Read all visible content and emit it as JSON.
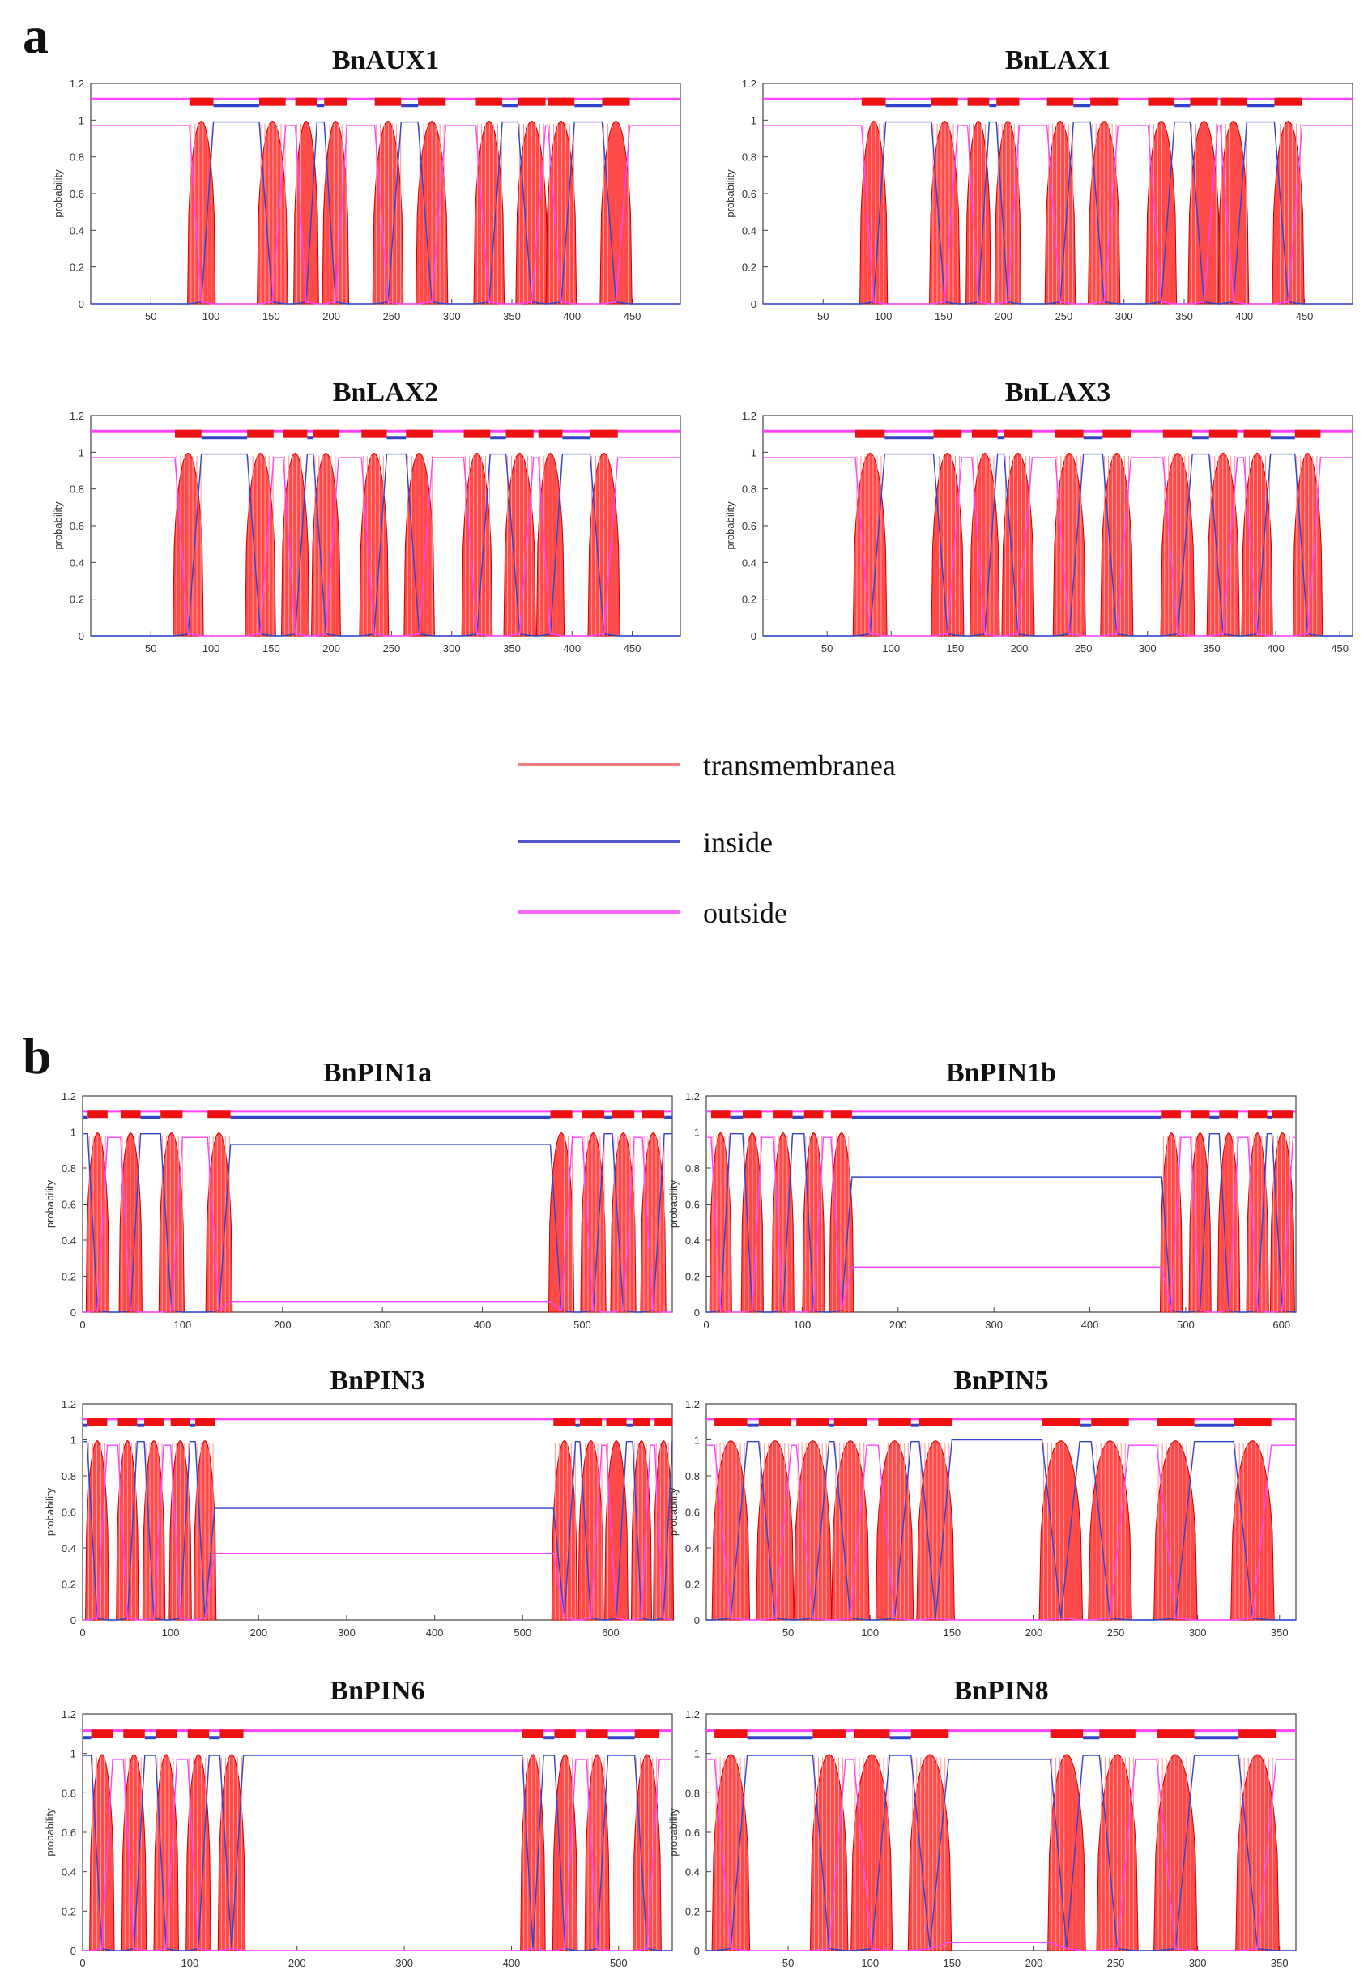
{
  "figure": {
    "panels": [
      {
        "letter": "a",
        "charts": [
          "BnAUX1",
          "BnLAX1",
          "BnLAX2",
          "BnLAX3"
        ]
      },
      {
        "letter": "b",
        "charts": [
          "BnPIN1a",
          "BnPIN1b",
          "BnPIN3",
          "BnPIN5",
          "BnPIN6",
          "BnPIN8"
        ]
      }
    ],
    "legend": [
      {
        "label": "transmembranea",
        "color": "#f08080"
      },
      {
        "label": "inside",
        "color": "#5555cc"
      },
      {
        "label": "outside",
        "color": "#ff66ff"
      }
    ]
  },
  "chart_data": [
    {
      "type": "line",
      "title": "BnAUX1",
      "ylabel": "probability",
      "xlim": [
        0,
        490
      ],
      "ylim": [
        0,
        1.2
      ],
      "yticks": [
        "0",
        "0.2",
        "0.4",
        "0.6",
        "0.8",
        "1",
        "1.2"
      ],
      "xticks": [
        "50",
        "100",
        "150",
        "200",
        "250",
        "300",
        "350",
        "400",
        "450"
      ],
      "series": [
        {
          "name": "transmembrane",
          "color": "#ff0000"
        },
        {
          "name": "inside",
          "color": "#3344cc"
        },
        {
          "name": "outside",
          "color": "#ff44ff"
        }
      ],
      "tm_segments": [
        [
          82,
          102
        ],
        [
          140,
          162
        ],
        [
          170,
          188
        ],
        [
          194,
          213
        ],
        [
          236,
          258
        ],
        [
          272,
          295
        ],
        [
          320,
          342
        ],
        [
          355,
          378
        ],
        [
          380,
          402
        ],
        [
          425,
          448
        ]
      ],
      "start": "outside"
    },
    {
      "type": "line",
      "title": "BnLAX1",
      "ylabel": "probability",
      "xlim": [
        0,
        490
      ],
      "ylim": [
        0,
        1.2
      ],
      "yticks": [
        "0",
        "0.2",
        "0.4",
        "0.6",
        "0.8",
        "1",
        "1.2"
      ],
      "xticks": [
        "50",
        "100",
        "150",
        "200",
        "250",
        "300",
        "350",
        "400",
        "450"
      ],
      "series": [
        {
          "name": "transmembrane",
          "color": "#ff0000"
        },
        {
          "name": "inside",
          "color": "#3344cc"
        },
        {
          "name": "outside",
          "color": "#ff44ff"
        }
      ],
      "tm_segments": [
        [
          82,
          102
        ],
        [
          140,
          162
        ],
        [
          170,
          188
        ],
        [
          194,
          213
        ],
        [
          236,
          258
        ],
        [
          272,
          295
        ],
        [
          320,
          342
        ],
        [
          355,
          378
        ],
        [
          380,
          402
        ],
        [
          425,
          448
        ]
      ],
      "start": "outside"
    },
    {
      "type": "line",
      "title": "BnLAX2",
      "ylabel": "probability",
      "xlim": [
        0,
        490
      ],
      "ylim": [
        0,
        1.2
      ],
      "yticks": [
        "0",
        "0.2",
        "0.4",
        "0.6",
        "0.8",
        "1",
        "1.2"
      ],
      "xticks": [
        "50",
        "100",
        "150",
        "200",
        "250",
        "300",
        "350",
        "400",
        "450"
      ],
      "series": [
        {
          "name": "transmembrane",
          "color": "#ff0000"
        },
        {
          "name": "inside",
          "color": "#3344cc"
        },
        {
          "name": "outside",
          "color": "#ff44ff"
        }
      ],
      "tm_segments": [
        [
          70,
          92
        ],
        [
          130,
          152
        ],
        [
          160,
          180
        ],
        [
          185,
          206
        ],
        [
          225,
          246
        ],
        [
          262,
          284
        ],
        [
          310,
          332
        ],
        [
          345,
          368
        ],
        [
          372,
          392
        ],
        [
          415,
          438
        ]
      ],
      "start": "outside"
    },
    {
      "type": "line",
      "title": "BnLAX3",
      "ylabel": "probability",
      "xlim": [
        0,
        460
      ],
      "ylim": [
        0,
        1.2
      ],
      "yticks": [
        "0",
        "0.2",
        "0.4",
        "0.6",
        "0.8",
        "1",
        "1.2"
      ],
      "xticks": [
        "50",
        "100",
        "150",
        "200",
        "250",
        "300",
        "350",
        "400",
        "450"
      ],
      "series": [
        {
          "name": "transmembrane",
          "color": "#ff0000"
        },
        {
          "name": "inside",
          "color": "#3344cc"
        },
        {
          "name": "outside",
          "color": "#ff44ff"
        }
      ],
      "tm_segments": [
        [
          72,
          95
        ],
        [
          133,
          155
        ],
        [
          163,
          183
        ],
        [
          188,
          210
        ],
        [
          228,
          250
        ],
        [
          265,
          287
        ],
        [
          312,
          335
        ],
        [
          348,
          370
        ],
        [
          375,
          396
        ],
        [
          415,
          435
        ]
      ],
      "start": "outside"
    },
    {
      "type": "line",
      "title": "BnPIN1a",
      "ylabel": "probability",
      "xlim": [
        0,
        590
      ],
      "ylim": [
        0,
        1.2
      ],
      "yticks": [
        "0",
        "0.2",
        "0.4",
        "0.6",
        "0.8",
        "1",
        "1.2"
      ],
      "xticks": [
        "0",
        "100",
        "200",
        "300",
        "400",
        "500"
      ],
      "series": [
        {
          "name": "transmembrane",
          "color": "#ff0000"
        },
        {
          "name": "inside",
          "color": "#3344cc"
        },
        {
          "name": "outside",
          "color": "#ff44ff"
        }
      ],
      "tm_segments": [
        [
          5,
          25
        ],
        [
          38,
          58
        ],
        [
          78,
          100
        ],
        [
          125,
          148
        ],
        [
          468,
          490
        ],
        [
          500,
          522
        ],
        [
          530,
          552
        ],
        [
          560,
          582
        ]
      ],
      "loop": [
        150,
        465
      ],
      "loop_in": 0.93,
      "loop_out": 0.06,
      "start": "inside"
    },
    {
      "type": "line",
      "title": "BnPIN1b",
      "ylabel": "probability",
      "xlim": [
        0,
        615
      ],
      "ylim": [
        0,
        1.2
      ],
      "yticks": [
        "0",
        "0.2",
        "0.4",
        "0.6",
        "0.8",
        "1",
        "1.2"
      ],
      "xticks": [
        "0",
        "100",
        "200",
        "300",
        "400",
        "500",
        "600"
      ],
      "series": [
        {
          "name": "transmembrane",
          "color": "#ff0000"
        },
        {
          "name": "inside",
          "color": "#3344cc"
        },
        {
          "name": "outside",
          "color": "#ff44ff"
        }
      ],
      "tm_segments": [
        [
          5,
          25
        ],
        [
          38,
          58
        ],
        [
          70,
          90
        ],
        [
          102,
          122
        ],
        [
          130,
          152
        ],
        [
          475,
          495
        ],
        [
          505,
          525
        ],
        [
          535,
          555
        ],
        [
          565,
          585
        ],
        [
          590,
          612
        ]
      ],
      "loop": [
        155,
        470
      ],
      "loop_in": 0.75,
      "loop_out": 0.25,
      "start": "outside"
    },
    {
      "type": "line",
      "title": "BnPIN3",
      "ylabel": "probability",
      "xlim": [
        0,
        670
      ],
      "ylim": [
        0,
        1.2
      ],
      "yticks": [
        "0",
        "0.2",
        "0.4",
        "0.6",
        "0.8",
        "1",
        "1.2"
      ],
      "xticks": [
        "0",
        "100",
        "200",
        "300",
        "400",
        "500",
        "600"
      ],
      "series": [
        {
          "name": "transmembrane",
          "color": "#ff0000"
        },
        {
          "name": "inside",
          "color": "#3344cc"
        },
        {
          "name": "outside",
          "color": "#ff44ff"
        }
      ],
      "tm_segments": [
        [
          5,
          28
        ],
        [
          40,
          62
        ],
        [
          70,
          92
        ],
        [
          100,
          122
        ],
        [
          128,
          150
        ],
        [
          535,
          560
        ],
        [
          565,
          590
        ],
        [
          595,
          618
        ],
        [
          625,
          645
        ],
        [
          650,
          670
        ]
      ],
      "loop": [
        152,
        530
      ],
      "loop_in": 0.62,
      "loop_out": 0.37,
      "start": "inside"
    },
    {
      "type": "line",
      "title": "BnPIN5",
      "ylabel": "probability",
      "xlim": [
        0,
        360
      ],
      "ylim": [
        0,
        1.2
      ],
      "yticks": [
        "0",
        "0.2",
        "0.4",
        "0.6",
        "0.8",
        "1",
        "1.2"
      ],
      "xticks": [
        "50",
        "100",
        "150",
        "200",
        "250",
        "300",
        "350"
      ],
      "series": [
        {
          "name": "transmembrane",
          "color": "#ff0000"
        },
        {
          "name": "inside",
          "color": "#3344cc"
        },
        {
          "name": "outside",
          "color": "#ff44ff"
        }
      ],
      "tm_segments": [
        [
          5,
          25
        ],
        [
          32,
          52
        ],
        [
          55,
          75
        ],
        [
          78,
          98
        ],
        [
          105,
          125
        ],
        [
          130,
          150
        ],
        [
          205,
          228
        ],
        [
          235,
          258
        ],
        [
          275,
          298
        ],
        [
          322,
          345
        ]
      ],
      "loop": [
        150,
        200
      ],
      "loop_in": 1.0,
      "loop_out": 0.0,
      "start": "outside"
    },
    {
      "type": "line",
      "title": "BnPIN6",
      "ylabel": "probability",
      "xlim": [
        0,
        550
      ],
      "ylim": [
        0,
        1.2
      ],
      "yticks": [
        "0",
        "0.2",
        "0.4",
        "0.6",
        "0.8",
        "1",
        "1.2"
      ],
      "xticks": [
        "0",
        "100",
        "200",
        "300",
        "400",
        "500"
      ],
      "series": [
        {
          "name": "transmembrane",
          "color": "#ff0000"
        },
        {
          "name": "inside",
          "color": "#3344cc"
        },
        {
          "name": "outside",
          "color": "#ff44ff"
        }
      ],
      "tm_segments": [
        [
          8,
          28
        ],
        [
          38,
          58
        ],
        [
          68,
          88
        ],
        [
          98,
          118
        ],
        [
          128,
          150
        ],
        [
          410,
          430
        ],
        [
          440,
          460
        ],
        [
          470,
          490
        ],
        [
          515,
          538
        ]
      ],
      "loop": [
        152,
        405
      ],
      "loop_in": 0.99,
      "loop_out": 0.0,
      "start": "inside"
    },
    {
      "type": "line",
      "title": "BnPIN8",
      "ylabel": "probability",
      "xlim": [
        0,
        360
      ],
      "ylim": [
        0,
        1.2
      ],
      "yticks": [
        "0",
        "0.2",
        "0.4",
        "0.6",
        "0.8",
        "1",
        "1.2"
      ],
      "xticks": [
        "50",
        "100",
        "150",
        "200",
        "250",
        "300",
        "350"
      ],
      "series": [
        {
          "name": "transmembrane",
          "color": "#ff0000"
        },
        {
          "name": "inside",
          "color": "#3344cc"
        },
        {
          "name": "outside",
          "color": "#ff44ff"
        }
      ],
      "tm_segments": [
        [
          5,
          25
        ],
        [
          65,
          85
        ],
        [
          90,
          112
        ],
        [
          125,
          148
        ],
        [
          210,
          230
        ],
        [
          240,
          262
        ],
        [
          275,
          298
        ],
        [
          325,
          348
        ]
      ],
      "loop": [
        150,
        205
      ],
      "loop_in": 0.97,
      "loop_out": 0.04,
      "start": "outside"
    }
  ]
}
